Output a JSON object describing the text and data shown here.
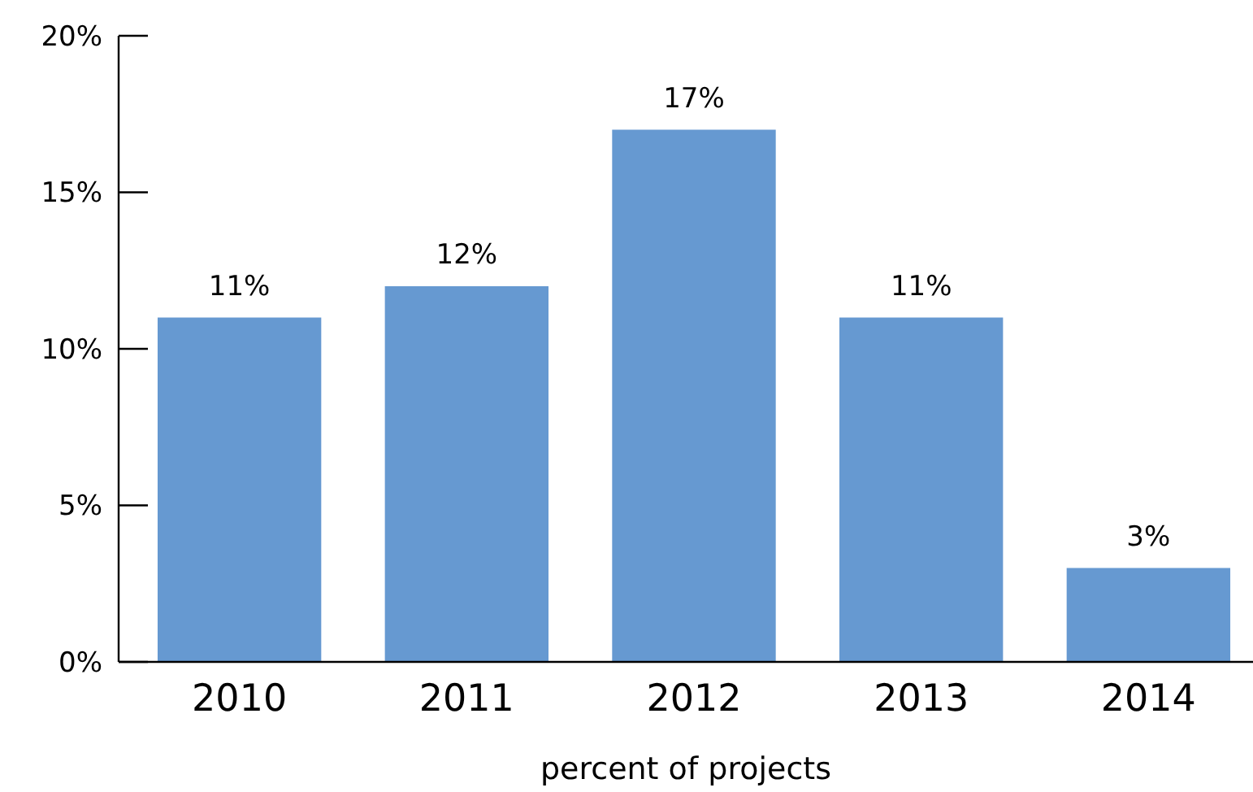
{
  "chart_data": {
    "type": "bar",
    "xlabel": "percent of projects",
    "categories": [
      "2010",
      "2011",
      "2012",
      "2013",
      "2014"
    ],
    "values": [
      11,
      12,
      17,
      11,
      3
    ],
    "value_labels": [
      "11%",
      "12%",
      "17%",
      "11%",
      "3%"
    ],
    "color": "#6699d1",
    "ylim": [
      0,
      20
    ],
    "yticks": [
      {
        "value": 0,
        "label": "0%"
      },
      {
        "value": 5,
        "label": "5%"
      },
      {
        "value": 10,
        "label": "10%"
      },
      {
        "value": 15,
        "label": "15%"
      },
      {
        "value": 20,
        "label": "20%"
      }
    ],
    "grid": false
  }
}
